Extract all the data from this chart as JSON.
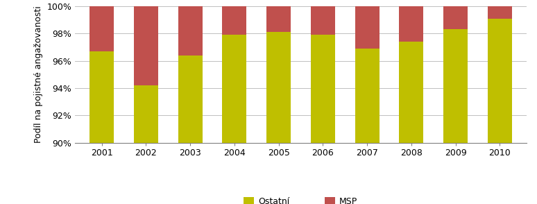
{
  "years": [
    2001,
    2002,
    2003,
    2004,
    2005,
    2006,
    2007,
    2008,
    2009,
    2010
  ],
  "ostatni": [
    96.7,
    94.2,
    96.4,
    97.9,
    98.1,
    97.9,
    96.9,
    97.4,
    98.3,
    99.1
  ],
  "msp": [
    3.3,
    5.8,
    3.6,
    2.1,
    1.9,
    2.1,
    3.1,
    2.6,
    1.7,
    0.9
  ],
  "color_ostatni": "#BFBF00",
  "color_msp": "#C0504D",
  "ylabel": "Podíl na pojistné angažovanosti",
  "ymin": 90,
  "ymax": 100,
  "legend_ostatni": "Ostatní",
  "legend_msp": "MSP",
  "bar_width": 0.55,
  "bg_color": "#FFFFFF"
}
